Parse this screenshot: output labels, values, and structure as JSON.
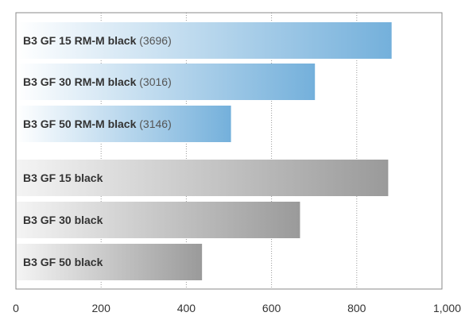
{
  "chart_data": {
    "type": "bar",
    "orientation": "horizontal",
    "title": "",
    "xlabel": "",
    "ylabel": "",
    "xlim": [
      0,
      1000
    ],
    "x_ticks": [
      "0",
      "200",
      "400",
      "600",
      "800",
      "1,000"
    ],
    "x_tick_values": [
      0,
      200,
      400,
      600,
      800,
      1000
    ],
    "grid": "vertical dotted",
    "bars": [
      {
        "name": "B3 GF 15 RM-M black",
        "code": "(3696)",
        "value": 880,
        "group": "RM-M",
        "color": "#7ab4dc"
      },
      {
        "name": "B3 GF 30 RM-M black",
        "code": "(3016)",
        "value": 700,
        "group": "RM-M",
        "color": "#7ab4dc"
      },
      {
        "name": "B3 GF 50 RM-M black",
        "code": "(3146)",
        "value": 503,
        "group": "RM-M",
        "color": "#7ab4dc"
      },
      {
        "name": "B3 GF 15 black",
        "code": "",
        "value": 872,
        "group": "standard",
        "color": "#9e9e9e"
      },
      {
        "name": "B3 GF 30 black",
        "code": "",
        "value": 665,
        "group": "standard",
        "color": "#9e9e9e"
      },
      {
        "name": "B3 GF 50 black",
        "code": "",
        "value": 435,
        "group": "standard",
        "color": "#9e9e9e"
      }
    ]
  }
}
